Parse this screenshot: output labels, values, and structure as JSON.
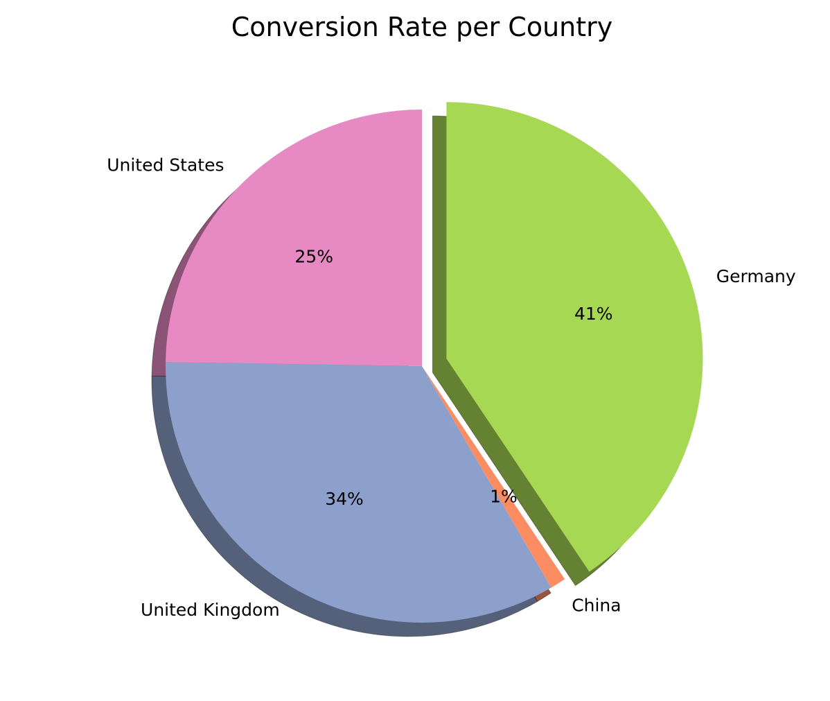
{
  "chart_data": {
    "type": "pie",
    "title": "Conversion Rate per Country",
    "categories": [
      "Germany",
      "China",
      "United Kingdom",
      "United States"
    ],
    "values": [
      41,
      1,
      34,
      25
    ],
    "value_labels": [
      "41%",
      "1%",
      "34%",
      "25%"
    ],
    "colors": [
      "#a6d854",
      "#fc8d62",
      "#8da0cb",
      "#e78ac3"
    ],
    "exploded": [
      "Germany"
    ],
    "shadow": true,
    "legend": "none"
  }
}
